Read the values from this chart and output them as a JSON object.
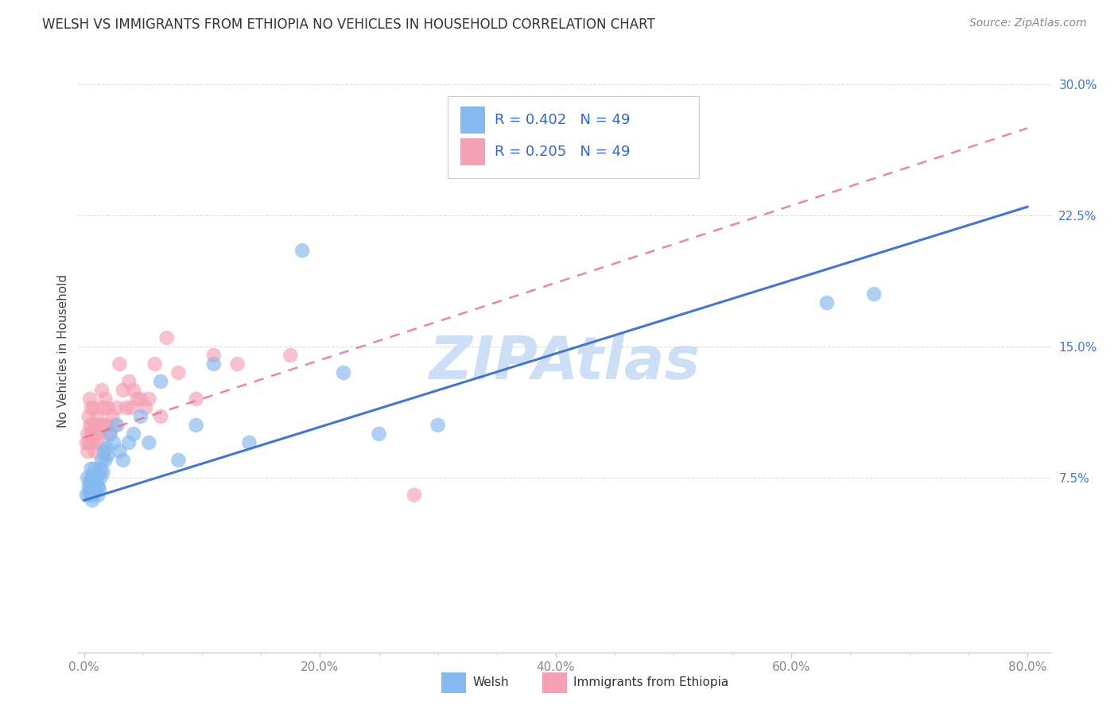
{
  "title": "WELSH VS IMMIGRANTS FROM ETHIOPIA NO VEHICLES IN HOUSEHOLD CORRELATION CHART",
  "source": "Source: ZipAtlas.com",
  "ylabel": "No Vehicles in Household",
  "xlabel_ticks": [
    "0.0%",
    "",
    "",
    "",
    "",
    "",
    "",
    "",
    "20.0%",
    "",
    "",
    "",
    "",
    "",
    "",
    "",
    "40.0%",
    "",
    "",
    "",
    "",
    "",
    "",
    "",
    "60.0%",
    "",
    "",
    "",
    "",
    "",
    "",
    "",
    "80.0%"
  ],
  "xlabel_vals": [
    0.0,
    0.025,
    0.05,
    0.075,
    0.1,
    0.125,
    0.15,
    0.175,
    0.2,
    0.225,
    0.25,
    0.275,
    0.3,
    0.325,
    0.35,
    0.375,
    0.4,
    0.425,
    0.45,
    0.475,
    0.5,
    0.525,
    0.55,
    0.575,
    0.6,
    0.625,
    0.65,
    0.675,
    0.7,
    0.725,
    0.75,
    0.775,
    0.8
  ],
  "xlim": [
    -0.005,
    0.82
  ],
  "ylim": [
    -0.025,
    0.32
  ],
  "ylabel_ticks_labels": [
    "7.5%",
    "15.0%",
    "22.5%",
    "30.0%"
  ],
  "ylabel_ticks_vals": [
    0.075,
    0.15,
    0.225,
    0.3
  ],
  "welsh_R": 0.402,
  "welsh_N": 49,
  "ethiopia_R": 0.205,
  "ethiopia_N": 49,
  "welsh_color": "#85b8ee",
  "ethiopia_color": "#f5a0b5",
  "welsh_line_color": "#4477cc",
  "ethiopia_line_color": "#e87090",
  "watermark": "ZIPAtlas",
  "watermark_color": "#ccdff5",
  "legend_R_color": "#3366cc",
  "title_color": "#333333",
  "source_color": "#888888",
  "title_fontsize": 12,
  "source_fontsize": 10,
  "axis_label_color": "#444444",
  "tick_color_x": "#888888",
  "tick_color_y": "#4477cc",
  "grid_color": "#dddddd",
  "welsh_x": [
    0.002,
    0.003,
    0.004,
    0.004,
    0.005,
    0.005,
    0.006,
    0.006,
    0.007,
    0.007,
    0.007,
    0.008,
    0.008,
    0.009,
    0.009,
    0.01,
    0.01,
    0.011,
    0.012,
    0.012,
    0.013,
    0.014,
    0.014,
    0.015,
    0.016,
    0.017,
    0.018,
    0.019,
    0.02,
    0.022,
    0.025,
    0.028,
    0.03,
    0.033,
    0.038,
    0.042,
    0.048,
    0.055,
    0.065,
    0.08,
    0.095,
    0.11,
    0.14,
    0.185,
    0.22,
    0.25,
    0.3,
    0.63,
    0.67
  ],
  "welsh_y": [
    0.065,
    0.075,
    0.07,
    0.065,
    0.068,
    0.072,
    0.08,
    0.075,
    0.07,
    0.065,
    0.062,
    0.068,
    0.075,
    0.07,
    0.08,
    0.075,
    0.068,
    0.072,
    0.065,
    0.07,
    0.068,
    0.08,
    0.075,
    0.085,
    0.078,
    0.09,
    0.085,
    0.092,
    0.088,
    0.1,
    0.095,
    0.105,
    0.09,
    0.085,
    0.095,
    0.1,
    0.11,
    0.095,
    0.13,
    0.085,
    0.105,
    0.14,
    0.095,
    0.205,
    0.135,
    0.1,
    0.105,
    0.175,
    0.18
  ],
  "ethiopia_x": [
    0.002,
    0.003,
    0.003,
    0.004,
    0.004,
    0.005,
    0.005,
    0.006,
    0.006,
    0.007,
    0.007,
    0.008,
    0.008,
    0.009,
    0.009,
    0.01,
    0.011,
    0.012,
    0.013,
    0.014,
    0.015,
    0.016,
    0.017,
    0.018,
    0.019,
    0.02,
    0.022,
    0.024,
    0.026,
    0.028,
    0.03,
    0.033,
    0.036,
    0.038,
    0.04,
    0.042,
    0.045,
    0.048,
    0.052,
    0.055,
    0.06,
    0.065,
    0.07,
    0.08,
    0.095,
    0.11,
    0.13,
    0.175,
    0.28
  ],
  "ethiopia_y": [
    0.095,
    0.09,
    0.1,
    0.11,
    0.095,
    0.12,
    0.105,
    0.1,
    0.115,
    0.095,
    0.105,
    0.1,
    0.115,
    0.09,
    0.105,
    0.1,
    0.11,
    0.095,
    0.105,
    0.1,
    0.125,
    0.115,
    0.105,
    0.12,
    0.105,
    0.115,
    0.1,
    0.11,
    0.105,
    0.115,
    0.14,
    0.125,
    0.115,
    0.13,
    0.115,
    0.125,
    0.12,
    0.12,
    0.115,
    0.12,
    0.14,
    0.11,
    0.155,
    0.135,
    0.12,
    0.145,
    0.14,
    0.145,
    0.065
  ],
  "marker_size": 180,
  "marker_alpha": 0.65
}
